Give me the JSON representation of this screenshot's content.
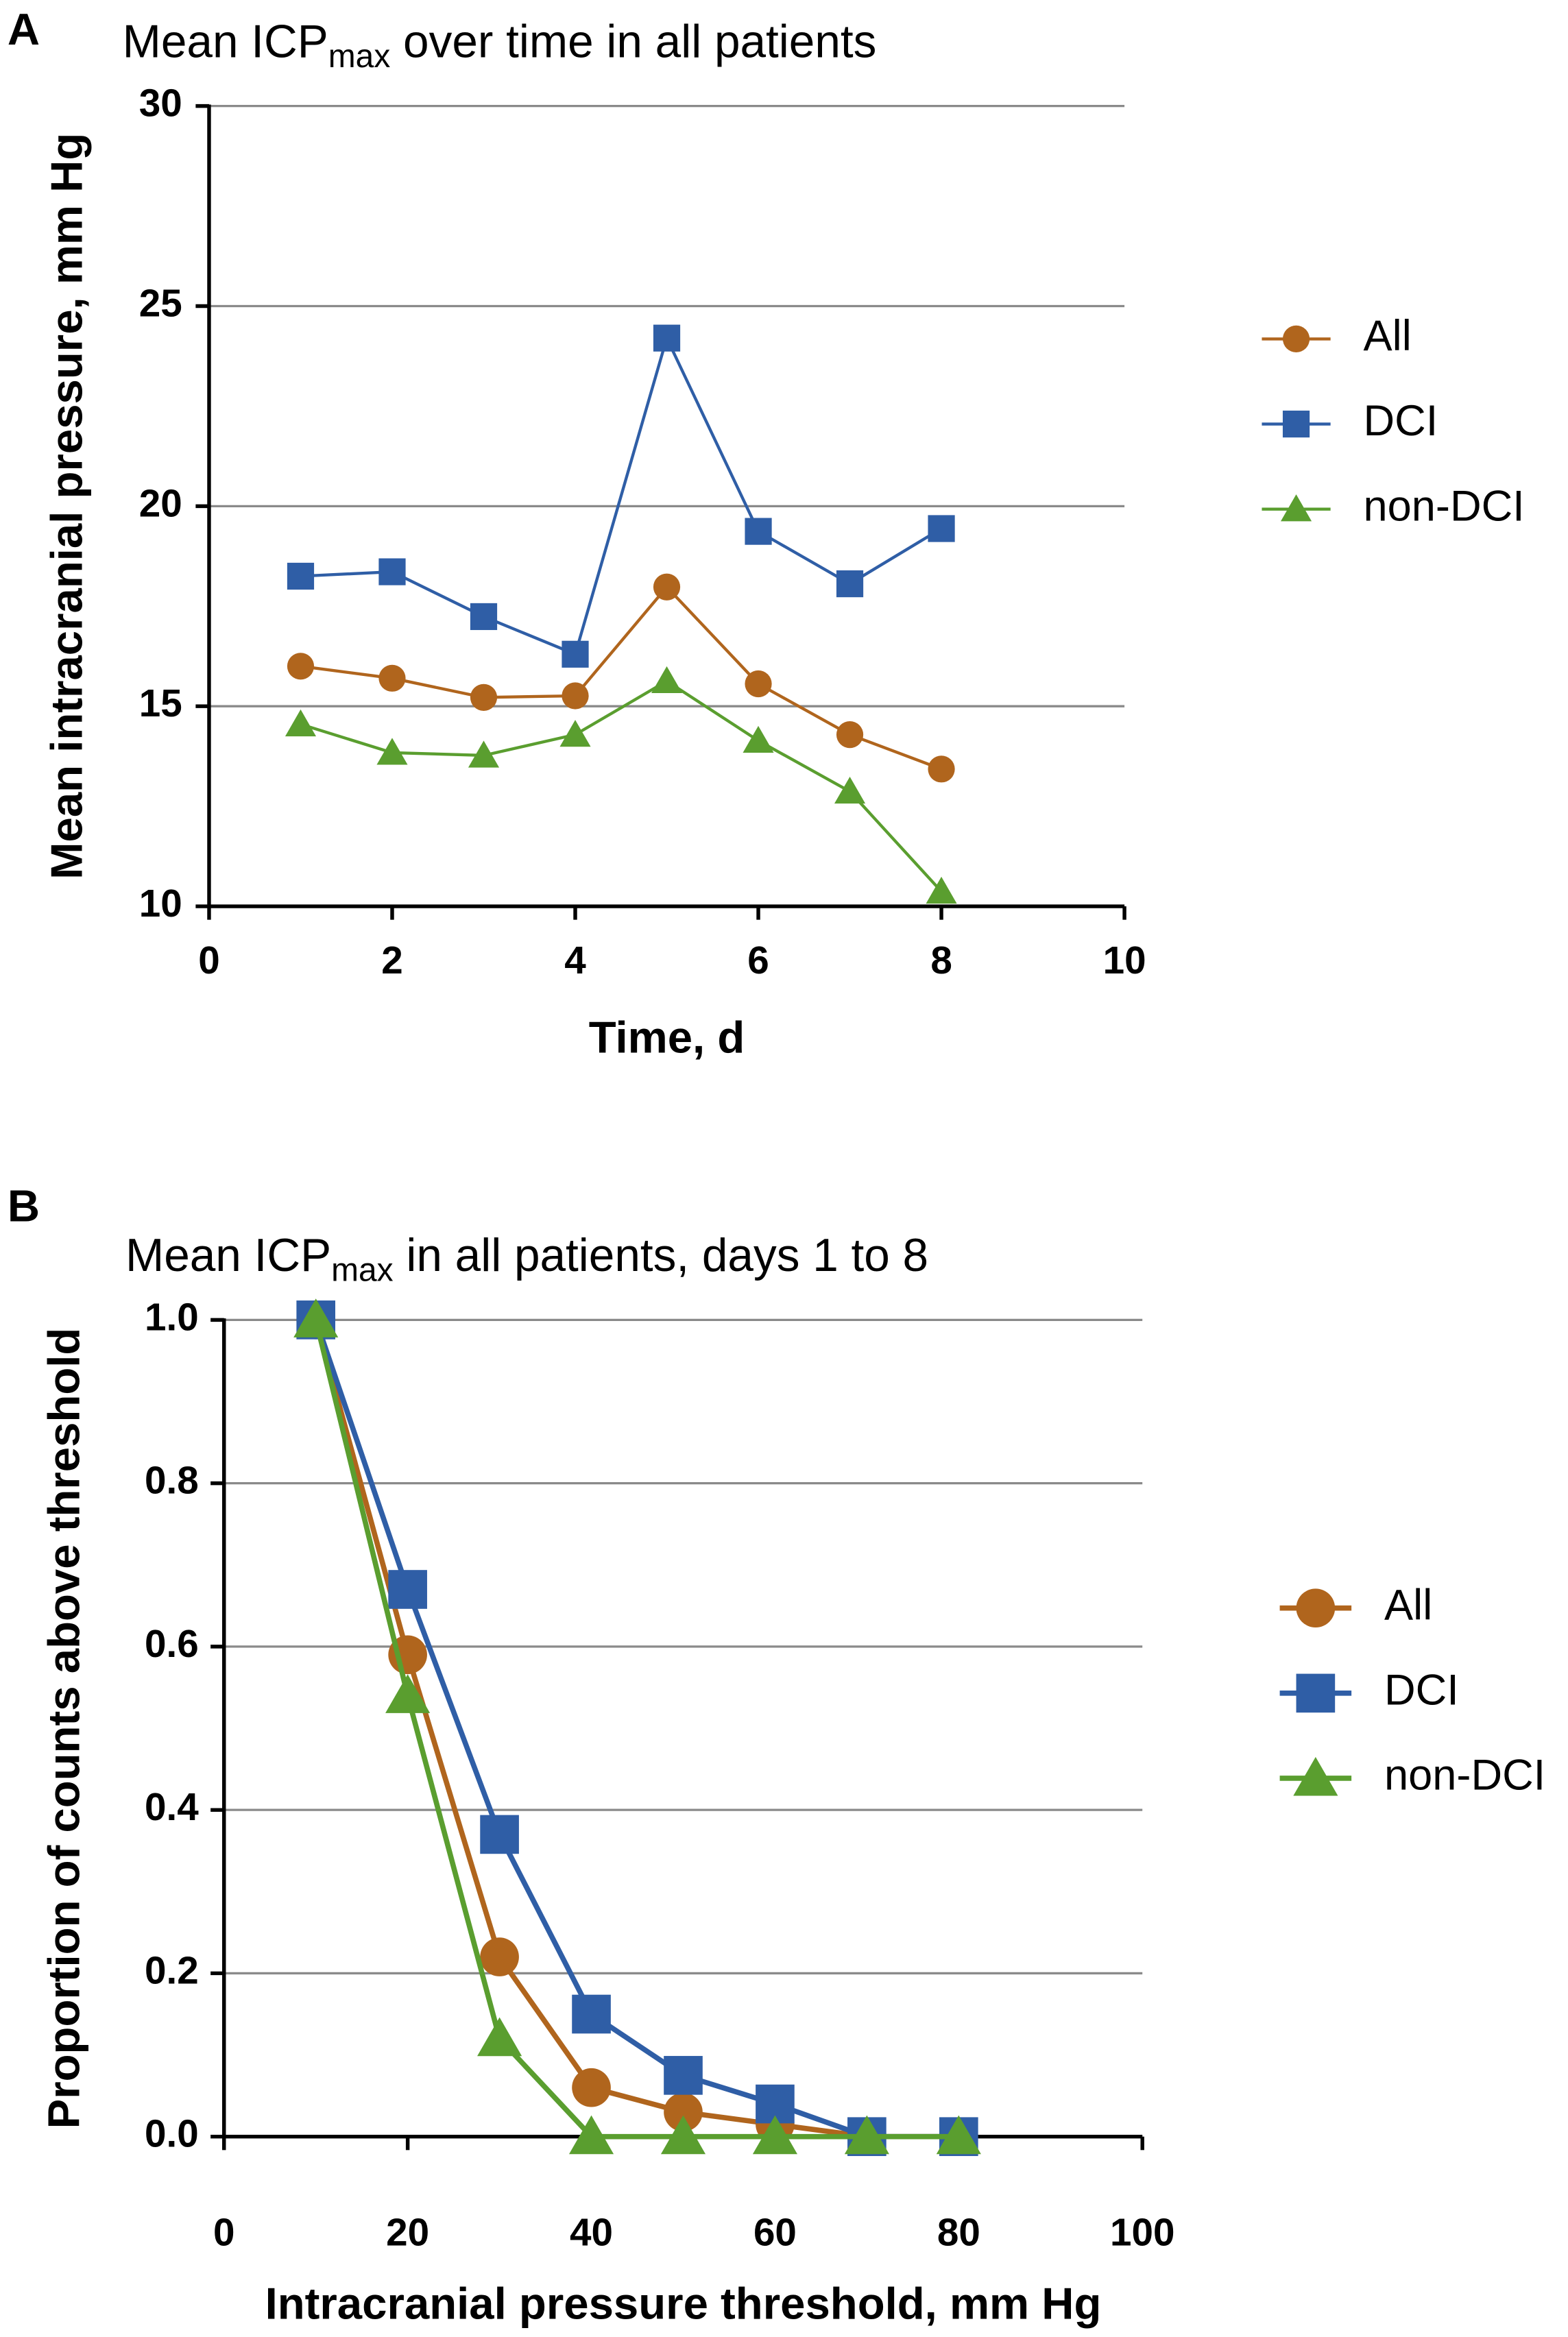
{
  "chart_data": [
    {
      "type": "line",
      "panel": "A",
      "title": "Mean ICP",
      "title_subscript": "max",
      "title_rest": " over time in all patients",
      "xlabel": "Time, d",
      "ylabel": "Mean intracranial pressure, mm Hg",
      "xlim": [
        0,
        10
      ],
      "xticks": [
        0,
        2,
        4,
        6,
        8,
        10
      ],
      "ylim": [
        10,
        30
      ],
      "yticks": [
        10,
        15,
        20,
        25,
        30
      ],
      "grid": true,
      "legend": "right",
      "x": [
        1,
        2,
        3,
        4,
        5,
        6,
        7,
        8
      ],
      "series": [
        {
          "name": "All",
          "color": "#b0651d",
          "marker": "circle",
          "values": [
            16.0,
            15.7,
            15.22,
            15.26,
            17.98,
            15.56,
            14.29,
            13.43
          ]
        },
        {
          "name": "DCI",
          "color": "#2f5ea6",
          "marker": "square",
          "values": [
            18.25,
            18.36,
            17.24,
            16.3,
            24.2,
            19.37,
            18.06,
            19.44
          ]
        },
        {
          "name": "non-DCI",
          "color": "#5a9e2f",
          "marker": "triangle",
          "values": [
            14.55,
            13.84,
            13.77,
            14.29,
            15.63,
            14.14,
            12.87,
            10.37
          ]
        }
      ]
    },
    {
      "type": "line",
      "panel": "B",
      "title": "Mean ICP",
      "title_subscript": "max",
      "title_rest": " in all patients, days 1 to 8",
      "xlabel": "Intracranial pressure threshold, mm Hg",
      "ylabel": "Proportion of counts above threshold",
      "xlim": [
        0,
        100
      ],
      "xticks": [
        0,
        20,
        40,
        60,
        80,
        100
      ],
      "ylim": [
        0,
        1
      ],
      "yticks": [
        {
          "value": 0,
          "label": "0.0"
        },
        0.2,
        0.4,
        0.6,
        0.8,
        {
          "value": 1,
          "label": "1.0"
        }
      ],
      "grid": true,
      "legend": "right",
      "x": [
        10,
        20,
        30,
        40,
        50,
        60,
        70,
        80
      ],
      "series": [
        {
          "name": "All",
          "color": "#b0651d",
          "marker": "circle",
          "values": [
            1,
            0.59,
            0.22,
            0.06,
            0.03,
            0.015,
            0,
            0
          ]
        },
        {
          "name": "DCI",
          "color": "#2f5ea6",
          "marker": "square",
          "values": [
            1,
            0.67,
            0.37,
            0.15,
            0.075,
            0.04,
            0,
            0
          ]
        },
        {
          "name": "non-DCI",
          "color": "#5a9e2f",
          "marker": "triangle",
          "values": [
            1,
            0.54,
            0.12,
            0,
            0,
            0,
            0,
            0
          ]
        }
      ]
    }
  ]
}
